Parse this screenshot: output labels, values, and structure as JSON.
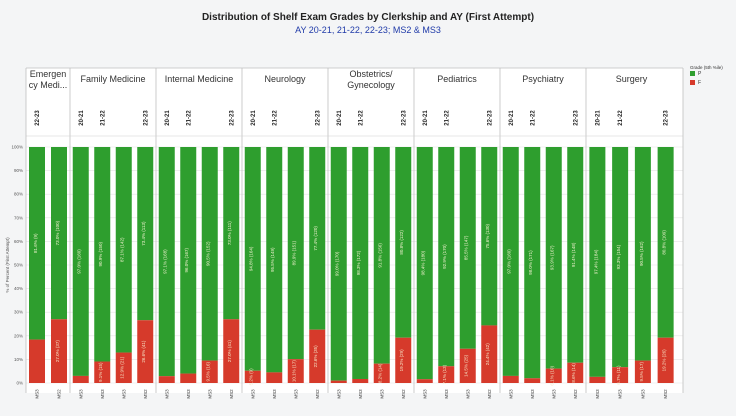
{
  "chart_data": {
    "type": "bar",
    "title": "Distribution of Shelf Exam Grades by Clerkship and AY (First Attempt)",
    "subtitle": "AY 20-21, 21-22, 22-23; MS2 & MS3",
    "ylabel": "% of Percent (First Attempt)",
    "ylim": [
      0,
      100
    ],
    "yticks": [
      "0%",
      "10%",
      "20%",
      "30%",
      "40%",
      "50%",
      "60%",
      "70%",
      "80%",
      "90%",
      "100%"
    ],
    "legend": {
      "title": "Grade (5th %ile)",
      "placement": "right",
      "items": [
        {
          "label": "P",
          "color": "#2e9e2e"
        },
        {
          "label": "F",
          "color": "#d63a2b"
        }
      ]
    },
    "colors": {
      "pass": "#2e9e2e",
      "fail": "#d63a2b"
    },
    "groups": [
      {
        "name": "Emergency Medi...",
        "name_lines": [
          "Emergen",
          "cy Medi..."
        ],
        "bars": [
          {
            "ay": "22-23",
            "ms": "MS3",
            "p": 81.6,
            "f": 18.4,
            "p_label": "81.6% (9)",
            "f_label": ""
          },
          {
            "ay": "",
            "ms": "MS2",
            "p": 73.0,
            "f": 27.0,
            "p_label": "73.0% (100)",
            "f_label": "27.0% (37)"
          }
        ]
      },
      {
        "name": "Family Medicine",
        "name_lines": [
          "Family Medicine"
        ],
        "bars": [
          {
            "ay": "20-21",
            "ms": "MS3",
            "p": 97.0,
            "f": 3.0,
            "p_label": "97.0% (160)",
            "f_label": ""
          },
          {
            "ay": "21-22",
            "ms": "MS3",
            "p": 90.9,
            "f": 9.1,
            "p_label": "90.9% (150)",
            "f_label": "9.1% (15)"
          },
          {
            "ay": "",
            "ms": "MS3",
            "p": 87.1,
            "f": 12.9,
            "p_label": "87.1% (142)",
            "f_label": "12.9% (21)"
          },
          {
            "ay": "22-23",
            "ms": "MS2",
            "p": 73.4,
            "f": 26.6,
            "p_label": "73.4% (113)",
            "f_label": "26.6% (41)"
          }
        ]
      },
      {
        "name": "Internal Medicine",
        "name_lines": [
          "Internal Medicine"
        ],
        "bars": [
          {
            "ay": "20-21",
            "ms": "MS3",
            "p": 97.1,
            "f": 2.9,
            "p_label": "97.1% (168)",
            "f_label": ""
          },
          {
            "ay": "21-22",
            "ms": "MS3",
            "p": 96.0,
            "f": 4.0,
            "p_label": "96.0% (167)",
            "f_label": ""
          },
          {
            "ay": "",
            "ms": "MS3",
            "p": 90.5,
            "f": 9.5,
            "p_label": "90.5% (152)",
            "f_label": "9.5% (16)"
          },
          {
            "ay": "22-23",
            "ms": "MS2",
            "p": 73.0,
            "f": 27.0,
            "p_label": "73.0% (111)",
            "f_label": "27.0% (41)"
          }
        ]
      },
      {
        "name": "Neurology",
        "name_lines": [
          "Neurology"
        ],
        "bars": [
          {
            "ay": "20-21",
            "ms": "MS3",
            "p": 94.8,
            "f": 5.2,
            "p_label": "94.8% (164)",
            "f_label": "5.2% (9)"
          },
          {
            "ay": "21-22",
            "ms": "MS3",
            "p": 95.5,
            "f": 4.5,
            "p_label": "95.5% (149)",
            "f_label": ""
          },
          {
            "ay": "",
            "ms": "MS3",
            "p": 89.9,
            "f": 10.1,
            "p_label": "89.9% (151)",
            "f_label": "10.1% (17)"
          },
          {
            "ay": "22-23",
            "ms": "MS2",
            "p": 77.4,
            "f": 22.6,
            "p_label": "77.4% (120)",
            "f_label": "22.6% (35)"
          }
        ]
      },
      {
        "name": "Obstetrics/ Gynecology",
        "name_lines": [
          "Obstetrics/",
          "Gynecology"
        ],
        "bars": [
          {
            "ay": "20-21",
            "ms": "MS3",
            "p": 99.0,
            "f": 1.0,
            "p_label": "99.0% (170)",
            "f_label": ""
          },
          {
            "ay": "21-22",
            "ms": "MS3",
            "p": 98.3,
            "f": 1.7,
            "p_label": "98.3% (172)",
            "f_label": ""
          },
          {
            "ay": "",
            "ms": "MS3",
            "p": 91.8,
            "f": 8.2,
            "p_label": "91.8% (156)",
            "f_label": "8.2% (14)"
          },
          {
            "ay": "22-23",
            "ms": "MS2",
            "p": 80.8,
            "f": 19.2,
            "p_label": "80.8% (122)",
            "f_label": "19.2% (29)"
          }
        ]
      },
      {
        "name": "Pediatrics",
        "name_lines": [
          "Pediatrics"
        ],
        "bars": [
          {
            "ay": "20-21",
            "ms": "MS3",
            "p": 98.4,
            "f": 1.6,
            "p_label": "98.4% (180)",
            "f_label": ""
          },
          {
            "ay": "21-22",
            "ms": "MS3",
            "p": 92.9,
            "f": 7.1,
            "p_label": "92.9% (170)",
            "f_label": "7.1% (13)"
          },
          {
            "ay": "",
            "ms": "MS3",
            "p": 85.5,
            "f": 14.5,
            "p_label": "85.5% (147)",
            "f_label": "14.5% (25)"
          },
          {
            "ay": "22-23",
            "ms": "MS2",
            "p": 75.6,
            "f": 24.4,
            "p_label": "75.6% (130)",
            "f_label": "24.4% (42)"
          }
        ]
      },
      {
        "name": "Psychiatry",
        "name_lines": [
          "Psychiatry"
        ],
        "bars": [
          {
            "ay": "20-21",
            "ms": "MS3",
            "p": 97.0,
            "f": 3.0,
            "p_label": "97.0% (160)",
            "f_label": ""
          },
          {
            "ay": "21-22",
            "ms": "MS3",
            "p": 98.0,
            "f": 2.0,
            "p_label": "98.0% (171)",
            "f_label": ""
          },
          {
            "ay": "",
            "ms": "MS3",
            "p": 93.9,
            "f": 6.1,
            "p_label": "93.9% (167)",
            "f_label": "6.1% (10)"
          },
          {
            "ay": "22-23",
            "ms": "MS2",
            "p": 91.4,
            "f": 8.6,
            "p_label": "91.4% (148)",
            "f_label": "8.6% (14)"
          }
        ]
      },
      {
        "name": "Surgery",
        "name_lines": [
          "Surgery"
        ],
        "bars": [
          {
            "ay": "20-21",
            "ms": "MS3",
            "p": 97.4,
            "f": 2.6,
            "p_label": "97.4% (184)",
            "f_label": ""
          },
          {
            "ay": "21-22",
            "ms": "MS3",
            "p": 93.3,
            "f": 6.7,
            "p_label": "93.3% (154)",
            "f_label": "6.7% (11)"
          },
          {
            "ay": "",
            "ms": "MS3",
            "p": 90.5,
            "f": 9.5,
            "p_label": "90.5% (162)",
            "f_label": "9.5% (17)"
          },
          {
            "ay": "22-23",
            "ms": "MS2",
            "p": 80.8,
            "f": 19.2,
            "p_label": "80.8% (109)",
            "f_label": "19.2% (26)"
          }
        ]
      }
    ]
  }
}
